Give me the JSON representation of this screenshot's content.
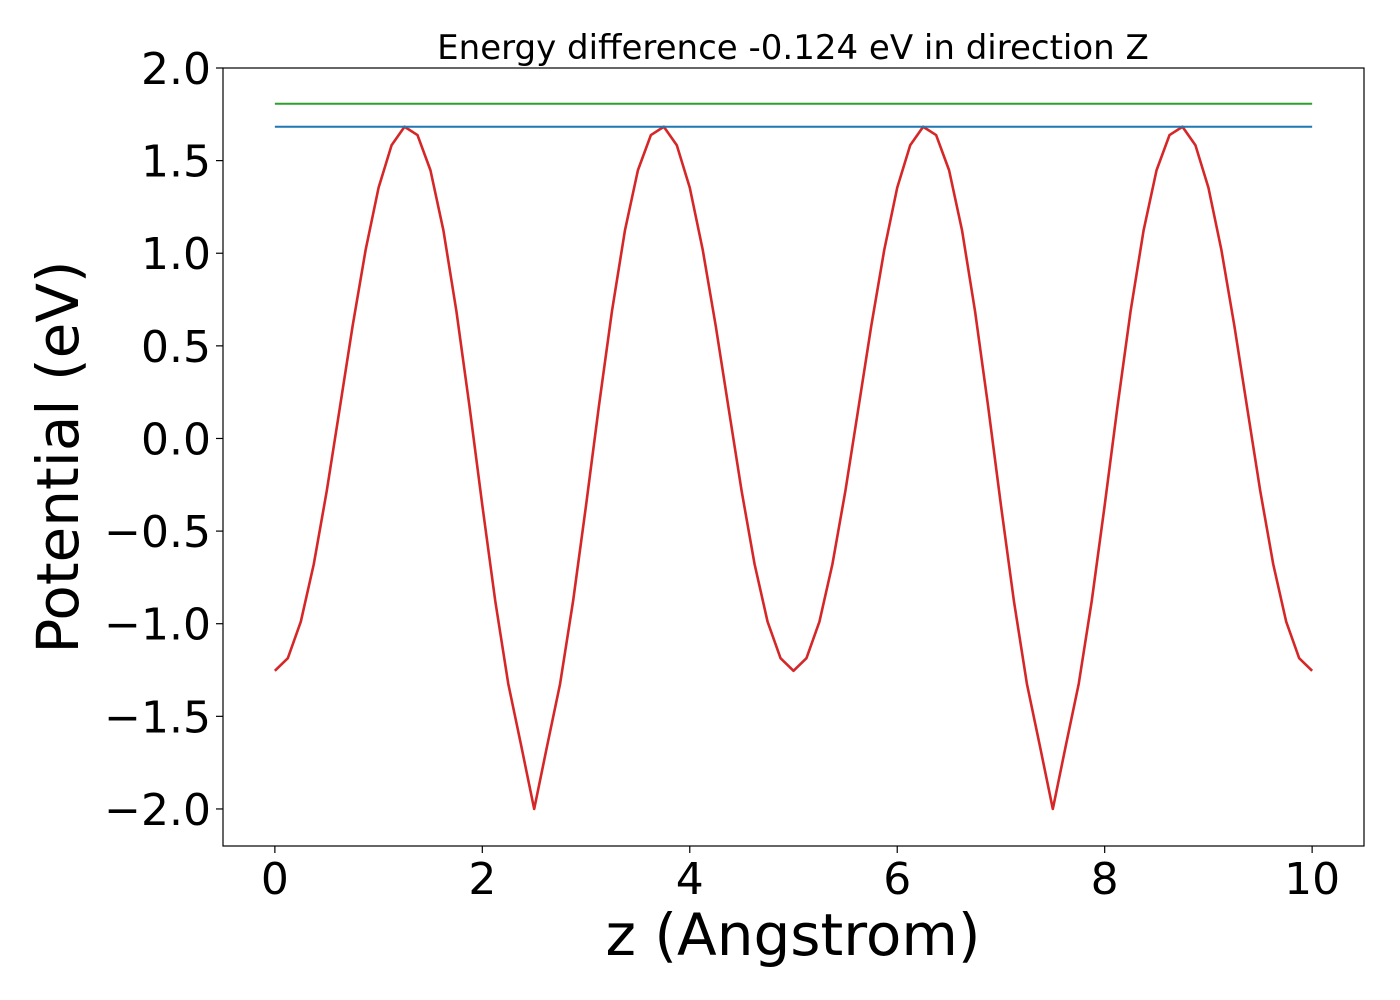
{
  "chart_data": {
    "type": "line",
    "title": "Energy difference -0.124 eV in direction Z",
    "xlabel": "z (Angstrom)",
    "ylabel": "Potential (eV)",
    "xlim": [
      -0.5,
      10.5
    ],
    "ylim": [
      -2.2,
      2.0
    ],
    "xticks": [
      0,
      2,
      4,
      6,
      8,
      10
    ],
    "xtick_labels": [
      "0",
      "2",
      "4",
      "6",
      "8",
      "10"
    ],
    "yticks": [
      -2.0,
      -1.5,
      -1.0,
      -0.5,
      0.0,
      0.5,
      1.0,
      1.5,
      2.0
    ],
    "ytick_labels": [
      "−2.0",
      "−1.5",
      "−1.0",
      "−0.5",
      "0.0",
      "0.5",
      "1.0",
      "1.5",
      "2.0"
    ],
    "grid": false,
    "series": [
      {
        "color": "#d62728",
        "x": [
          0,
          0.125,
          0.25,
          0.375,
          0.5,
          0.625,
          0.75,
          0.875,
          1.0,
          1.125,
          1.25,
          1.375,
          1.5,
          1.625,
          1.75,
          1.875,
          2.0,
          2.125,
          2.25,
          2.375,
          2.5,
          2.625,
          2.75,
          2.875,
          3.0,
          3.125,
          3.25,
          3.375,
          3.5,
          3.625,
          3.75,
          3.875,
          4.0,
          4.125,
          4.25,
          4.375,
          4.5,
          4.625,
          4.75,
          4.875,
          5.0,
          5.125,
          5.25,
          5.375,
          5.5,
          5.625,
          5.75,
          5.875,
          6.0,
          6.125,
          6.25,
          6.375,
          6.5,
          6.625,
          6.75,
          6.875,
          7.0,
          7.125,
          7.25,
          7.375,
          7.5,
          7.625,
          7.75,
          7.875,
          8.0,
          8.125,
          8.25,
          8.375,
          8.5,
          8.625,
          8.75,
          8.875,
          9.0,
          9.125,
          9.25,
          9.375,
          9.5,
          9.625,
          9.75,
          9.875,
          10.0
        ],
        "y": [
          -1.254,
          -1.186,
          -0.989,
          -0.679,
          -0.284,
          0.161,
          0.609,
          1.018,
          1.354,
          1.583,
          1.683,
          1.638,
          1.448,
          1.123,
          0.688,
          0.179,
          -0.361,
          -0.878,
          -1.324,
          -1.659,
          -2.0,
          -1.659,
          -1.324,
          -0.878,
          -0.361,
          0.179,
          0.688,
          1.123,
          1.448,
          1.638,
          1.683,
          1.583,
          1.354,
          1.018,
          0.609,
          0.161,
          -0.284,
          -0.679,
          -0.989,
          -1.186,
          -1.254,
          -1.186,
          -0.989,
          -0.679,
          -0.284,
          0.161,
          0.609,
          1.018,
          1.354,
          1.583,
          1.683,
          1.638,
          1.448,
          1.123,
          0.688,
          0.179,
          -0.361,
          -0.878,
          -1.324,
          -1.659,
          -2.0,
          -1.659,
          -1.324,
          -0.878,
          -0.361,
          0.179,
          0.688,
          1.123,
          1.448,
          1.638,
          1.683,
          1.583,
          1.354,
          1.018,
          0.609,
          0.161,
          -0.284,
          -0.679,
          -0.989,
          -1.186,
          -1.254
        ]
      },
      {
        "color": "#1f77b4",
        "x": [
          0,
          10
        ],
        "y": [
          1.683,
          1.683
        ]
      },
      {
        "color": "#2ca02c",
        "x": [
          0,
          10
        ],
        "y": [
          1.807,
          1.807
        ]
      }
    ]
  }
}
